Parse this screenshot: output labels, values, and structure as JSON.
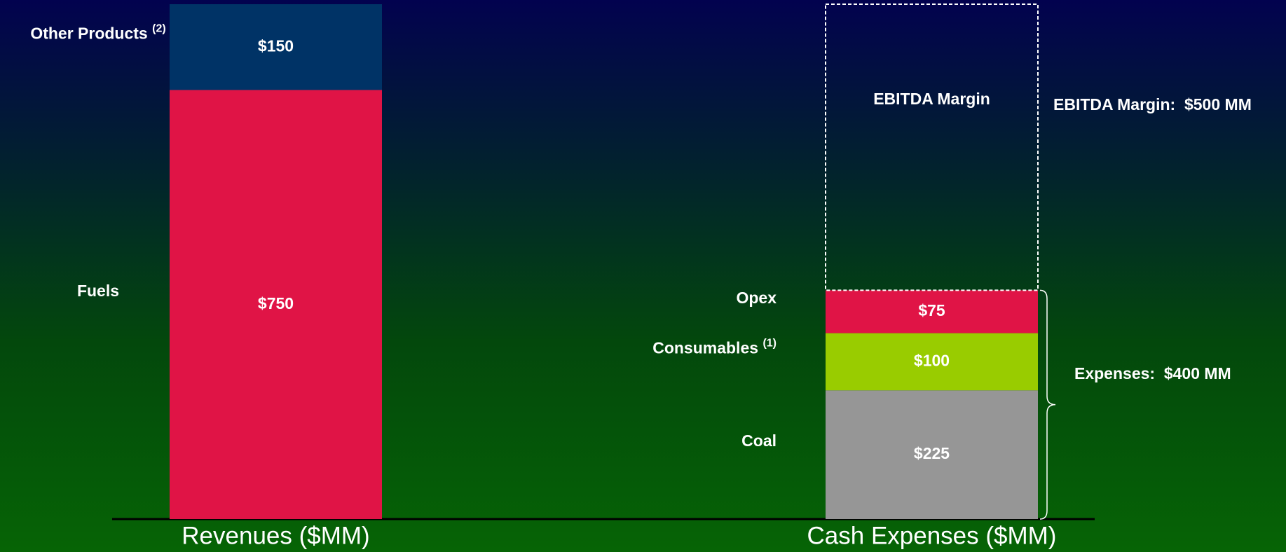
{
  "chart_data": {
    "type": "stacked_bar",
    "categories": [
      "Revenues ($MM)",
      "Cash Expenses ($MM)"
    ],
    "series": [
      {
        "name": "Fuels",
        "color": "#e01446",
        "values": [
          750,
          null
        ],
        "value_labels": [
          "$750",
          null
        ]
      },
      {
        "name": "Other Products",
        "note": "(2)",
        "color": "#003366",
        "values": [
          150,
          null
        ],
        "value_labels": [
          "$150",
          null
        ]
      },
      {
        "name": "Coal",
        "color": "#969696",
        "values": [
          null,
          225
        ],
        "value_labels": [
          null,
          "$225"
        ]
      },
      {
        "name": "Consumables",
        "note": "(1)",
        "color": "#99cc00",
        "values": [
          null,
          100
        ],
        "value_labels": [
          null,
          "$100"
        ]
      },
      {
        "name": "Opex",
        "color": "#e01446",
        "values": [
          null,
          75
        ],
        "value_labels": [
          null,
          "$75"
        ]
      },
      {
        "name": "EBITDA Margin",
        "color": "#ffffff",
        "dashed": true,
        "values": [
          null,
          500
        ]
      }
    ],
    "annotations": [
      "EBITDA Margin:  $500 MM",
      "Expenses:  $400 MM"
    ]
  }
}
